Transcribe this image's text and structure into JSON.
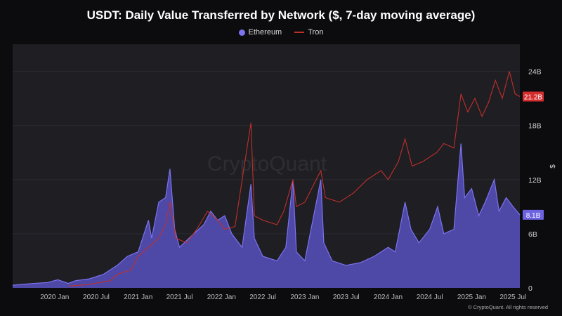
{
  "chart_data": {
    "type": "area",
    "title": "USDT: Daily Value Transferred by Network ($, 7-day moving average)",
    "xlabel": "",
    "ylabel": "$",
    "ylim": [
      0,
      27
    ],
    "y_unit": "B",
    "y_ticks": [
      "0",
      "6B",
      "12B",
      "18B",
      "24B"
    ],
    "x_ticks": [
      "2020 Jan",
      "2020 Jul",
      "2021 Jan",
      "2021 Jul",
      "2022 Jan",
      "2022 Jul",
      "2023 Jan",
      "2023 Jul",
      "2024 Jan",
      "2024 Jul",
      "2025 Jan",
      "2025 Jul"
    ],
    "grid": true,
    "legend_position": "top-center",
    "watermark": "CryptoQuant",
    "series": [
      {
        "name": "Ethereum",
        "style": "area",
        "color": "#7b73f0",
        "last_value_label": "8.1B",
        "points": [
          [
            "2019-07-01",
            0.3
          ],
          [
            "2019-10-01",
            0.5
          ],
          [
            "2019-12-01",
            0.6
          ],
          [
            "2020-01-15",
            0.9
          ],
          [
            "2020-03-01",
            0.5
          ],
          [
            "2020-04-01",
            0.8
          ],
          [
            "2020-06-01",
            1.0
          ],
          [
            "2020-08-01",
            1.5
          ],
          [
            "2020-10-01",
            2.5
          ],
          [
            "2020-11-15",
            3.5
          ],
          [
            "2021-01-01",
            4.0
          ],
          [
            "2021-02-15",
            7.5
          ],
          [
            "2021-03-01",
            5.5
          ],
          [
            "2021-04-01",
            9.5
          ],
          [
            "2021-05-01",
            10.0
          ],
          [
            "2021-05-20",
            13.2
          ],
          [
            "2021-06-10",
            6.5
          ],
          [
            "2021-07-01",
            4.5
          ],
          [
            "2021-09-01",
            6.0
          ],
          [
            "2021-10-15",
            7.0
          ],
          [
            "2021-11-15",
            8.5
          ],
          [
            "2021-12-15",
            7.5
          ],
          [
            "2022-01-15",
            8.0
          ],
          [
            "2022-02-15",
            6.0
          ],
          [
            "2022-04-01",
            4.5
          ],
          [
            "2022-05-10",
            11.5
          ],
          [
            "2022-05-25",
            5.5
          ],
          [
            "2022-07-01",
            3.5
          ],
          [
            "2022-09-01",
            3.0
          ],
          [
            "2022-10-10",
            4.5
          ],
          [
            "2022-11-10",
            12.0
          ],
          [
            "2022-11-25",
            4.0
          ],
          [
            "2023-01-01",
            3.0
          ],
          [
            "2023-03-12",
            12.0
          ],
          [
            "2023-03-25",
            5.0
          ],
          [
            "2023-05-01",
            3.0
          ],
          [
            "2023-07-01",
            2.5
          ],
          [
            "2023-09-01",
            2.8
          ],
          [
            "2023-11-01",
            3.5
          ],
          [
            "2024-01-01",
            4.5
          ],
          [
            "2024-02-01",
            4.0
          ],
          [
            "2024-03-15",
            9.5
          ],
          [
            "2024-04-10",
            6.5
          ],
          [
            "2024-05-15",
            5.0
          ],
          [
            "2024-07-01",
            6.5
          ],
          [
            "2024-08-05",
            9.0
          ],
          [
            "2024-09-01",
            6.0
          ],
          [
            "2024-10-15",
            6.5
          ],
          [
            "2024-11-15",
            16.0
          ],
          [
            "2024-12-01",
            10.0
          ],
          [
            "2025-01-01",
            11.0
          ],
          [
            "2025-02-01",
            8.0
          ],
          [
            "2025-03-01",
            9.5
          ],
          [
            "2025-04-10",
            12.0
          ],
          [
            "2025-05-01",
            8.5
          ],
          [
            "2025-06-01",
            10.0
          ],
          [
            "2025-07-01",
            9.0
          ],
          [
            "2025-07-31",
            8.1
          ]
        ]
      },
      {
        "name": "Tron",
        "style": "line",
        "color": "#c0302b",
        "last_value_label": "21.2B",
        "points": [
          [
            "2020-03-01",
            0.2
          ],
          [
            "2020-06-01",
            0.4
          ],
          [
            "2020-09-01",
            0.8
          ],
          [
            "2020-10-01",
            1.5
          ],
          [
            "2020-12-01",
            2.0
          ],
          [
            "2021-01-01",
            3.5
          ],
          [
            "2021-02-15",
            4.5
          ],
          [
            "2021-04-01",
            5.5
          ],
          [
            "2021-05-01",
            7.0
          ],
          [
            "2021-05-20",
            9.5
          ],
          [
            "2021-06-15",
            5.5
          ],
          [
            "2021-08-01",
            5.0
          ],
          [
            "2021-09-15",
            6.5
          ],
          [
            "2021-11-01",
            8.5
          ],
          [
            "2021-12-15",
            7.5
          ],
          [
            "2022-01-15",
            6.5
          ],
          [
            "2022-03-01",
            6.8
          ],
          [
            "2022-05-10",
            18.3
          ],
          [
            "2022-05-25",
            8.0
          ],
          [
            "2022-07-01",
            7.5
          ],
          [
            "2022-09-01",
            7.0
          ],
          [
            "2022-10-01",
            8.5
          ],
          [
            "2022-11-10",
            12.0
          ],
          [
            "2022-11-25",
            9.0
          ],
          [
            "2023-01-01",
            9.5
          ],
          [
            "2023-03-12",
            13.0
          ],
          [
            "2023-04-01",
            10.0
          ],
          [
            "2023-06-01",
            9.5
          ],
          [
            "2023-08-01",
            10.5
          ],
          [
            "2023-10-01",
            12.0
          ],
          [
            "2023-12-01",
            13.0
          ],
          [
            "2024-01-01",
            12.0
          ],
          [
            "2024-02-15",
            14.0
          ],
          [
            "2024-03-15",
            16.5
          ],
          [
            "2024-04-15",
            13.5
          ],
          [
            "2024-06-01",
            14.0
          ],
          [
            "2024-07-01",
            14.5
          ],
          [
            "2024-08-01",
            15.0
          ],
          [
            "2024-09-01",
            16.0
          ],
          [
            "2024-10-15",
            15.5
          ],
          [
            "2024-11-15",
            21.5
          ],
          [
            "2024-12-15",
            19.5
          ],
          [
            "2025-01-15",
            21.0
          ],
          [
            "2025-02-15",
            19.0
          ],
          [
            "2025-03-15",
            20.5
          ],
          [
            "2025-04-15",
            23.0
          ],
          [
            "2025-05-15",
            21.0
          ],
          [
            "2025-06-15",
            24.0
          ],
          [
            "2025-07-10",
            21.5
          ],
          [
            "2025-07-31",
            21.2
          ]
        ]
      }
    ],
    "annotations": [
      {
        "text": "21.2B",
        "color": "#d42d2d"
      },
      {
        "text": "8.1B",
        "color": "#6c63e0"
      }
    ]
  },
  "footer": {
    "copyright": "© CryptoQuant. All rights reserved"
  }
}
